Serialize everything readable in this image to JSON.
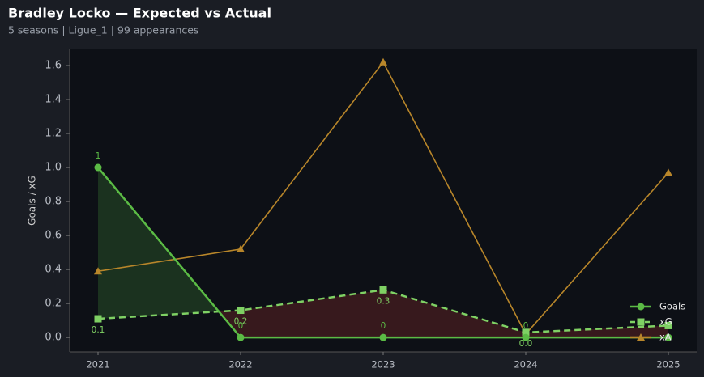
{
  "chart_data": {
    "type": "line",
    "title": "Bradley Locko — Expected vs Actual",
    "subtitle": "5 seasons | Ligue_1 | 99 appearances",
    "y_label": "Goals / xG",
    "categories": [
      "2021",
      "2022",
      "2023",
      "2024",
      "2025"
    ],
    "series": [
      {
        "name": "Goals",
        "color": "#5bbb45",
        "values": [
          1,
          0,
          0,
          0,
          0
        ],
        "value_labels": [
          "1",
          "0",
          "0",
          "0",
          null
        ]
      },
      {
        "name": "xG",
        "color": "#7fd164",
        "values": [
          0.11,
          0.16,
          0.28,
          0.03,
          0.07
        ],
        "value_labels": [
          "0.1",
          "0.2",
          "0.3",
          "0.0",
          null
        ]
      },
      {
        "name": "xA",
        "color": "#b8862a",
        "values": [
          0.39,
          0.52,
          1.62,
          0.02,
          0.97
        ]
      }
    ],
    "ylim": [
      -0.085,
      1.7
    ],
    "yticks": [
      {
        "value": 0,
        "label": "0.0"
      },
      0.2,
      0.4,
      0.6,
      0.8,
      {
        "value": 1,
        "label": "1.0"
      },
      1.2,
      1.4,
      1.6
    ],
    "legend": "lower right"
  }
}
